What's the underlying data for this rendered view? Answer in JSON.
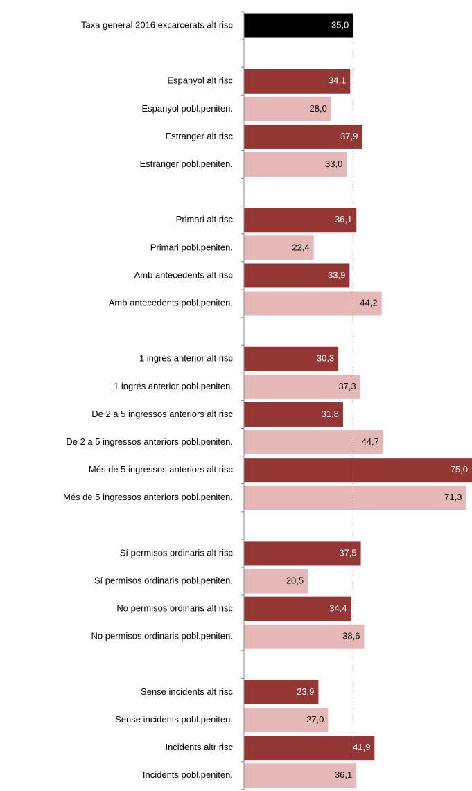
{
  "chart_data": {
    "type": "barh",
    "categories": [
      "Taxa general  2016 excarcerats alt risc",
      null,
      "Espanyol alt risc",
      "Espanyol pobl.peniten.",
      "Estranger alt risc",
      "Estranger pobl.peniten.",
      null,
      "Primari alt risc",
      "Primari pobl.peniten.",
      "Amb antecedents alt risc",
      "Amb antecedents pobl.peniten.",
      null,
      "1 ingres anterior alt risc",
      "1 ingrés anterior pobl.peniten.",
      "De 2 a 5 ingressos anteriors alt risc",
      "De 2 a 5 ingressos anteriors pobl.peniten.",
      "Més de 5 ingressos anteriors alt risc",
      "Més de 5 ingressos anteriors  pobl.peniten.",
      null,
      "Sí permisos ordinaris alt risc",
      "Sí permisos ordinaris pobl.peniten.",
      "No permisos ordinaris alt risc",
      "No permisos ordinaris pobl.peniten.",
      null,
      "Sense incidents alt risc",
      "Sense incidents pobl.peniten.",
      "Incidents altr risc",
      "Incidents pobl.peniten."
    ],
    "values": [
      35.0,
      null,
      34.1,
      28.0,
      37.9,
      33.0,
      null,
      36.1,
      22.4,
      33.9,
      44.2,
      null,
      30.3,
      37.3,
      31.8,
      44.7,
      75.0,
      71.3,
      null,
      37.5,
      20.5,
      34.4,
      38.6,
      null,
      23.9,
      27.0,
      41.9,
      36.1
    ],
    "value_labels": [
      "35,0",
      null,
      "34,1",
      "28,0",
      "37,9",
      "33,0",
      null,
      "36,1",
      "22,4",
      "33,9",
      "44,2",
      null,
      "30,3",
      "37,3",
      "31,8",
      "44,7",
      "75,0",
      "71,3",
      null,
      "37,5",
      "20,5",
      "34,4",
      "38,6",
      null,
      "23,9",
      "27,0",
      "41,9",
      "36,1"
    ],
    "colors": [
      "#000000",
      null,
      "#943634",
      "#e6b9b8",
      "#943634",
      "#e6b9b8",
      null,
      "#943634",
      "#e6b9b8",
      "#943634",
      "#e6b9b8",
      null,
      "#943634",
      "#e6b9b8",
      "#943634",
      "#e6b9b8",
      "#943634",
      "#e6b9b8",
      null,
      "#943634",
      "#e6b9b8",
      "#943634",
      "#e6b9b8",
      null,
      "#943634",
      "#e6b9b8",
      "#943634",
      "#e6b9b8"
    ],
    "label_colors": [
      "#ffffff",
      null,
      "#ffffff",
      "#000000",
      "#ffffff",
      "#000000",
      null,
      "#ffffff",
      "#000000",
      "#ffffff",
      "#000000",
      null,
      "#ffffff",
      "#000000",
      "#ffffff",
      "#000000",
      "#ffffff",
      "#000000",
      null,
      "#ffffff",
      "#000000",
      "#ffffff",
      "#000000",
      null,
      "#ffffff",
      "#000000",
      "#ffffff",
      "#000000"
    ],
    "xlim": [
      0,
      73.2
    ],
    "reference_x": 35.0
  }
}
